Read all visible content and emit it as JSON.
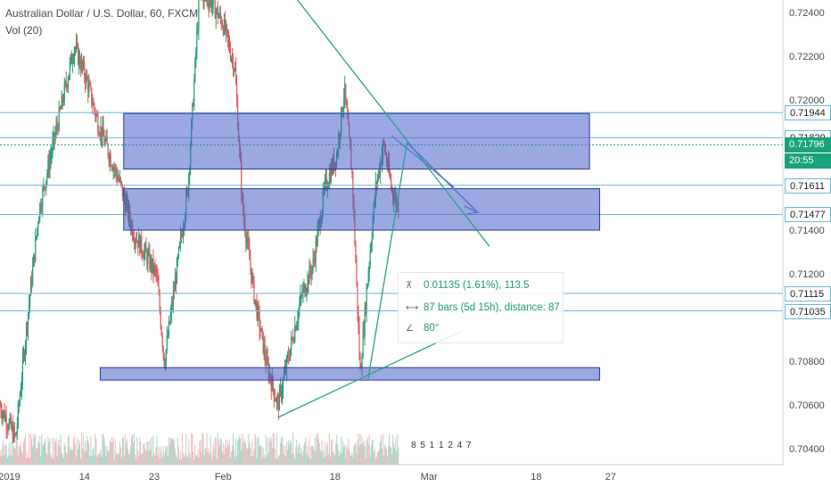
{
  "chart_data": {
    "type": "candlestick",
    "title": "Australian Dollar / U.S. Dollar, 60, FXCM",
    "indicator": "Vol (20)",
    "x_tick_labels": [
      "2019",
      "14",
      "23",
      "Feb",
      "18",
      "Mar",
      "18",
      "27"
    ],
    "y_tick_labels": [
      "0.72400",
      "0.72200",
      "0.72000",
      "0.71400",
      "0.71200",
      "0.70800",
      "0.70600",
      "0.70400"
    ],
    "ylim": [
      0.7033,
      0.7246
    ],
    "horizontal_levels": [
      {
        "label": "0.71944",
        "value": 0.71944
      },
      {
        "label": "0.71829",
        "value": 0.71829
      },
      {
        "label": "0.71611",
        "value": 0.71611
      },
      {
        "label": "0.71477",
        "value": 0.71477
      },
      {
        "label": "0.71115",
        "value": 0.71115
      },
      {
        "label": "0.71035",
        "value": 0.71035
      }
    ],
    "current_price": {
      "label": "0.71796",
      "value": 0.71796,
      "timer": "20:55"
    },
    "rectangles": [
      {
        "from_x": 0.158,
        "to_x": 0.753,
        "top": 0.7194,
        "bottom": 0.71685
      },
      {
        "from_x": 0.158,
        "to_x": 0.766,
        "top": 0.71595,
        "bottom": 0.71405
      },
      {
        "from_x": 0.128,
        "to_x": 0.766,
        "top": 0.70775,
        "bottom": 0.70745
      }
    ],
    "measure": {
      "price_range": "0.01135 (1.61%), 113.5",
      "bars_range": "87 bars (5d 15h), distance: 87",
      "angle": "80°"
    },
    "volume_label": "8 5 1 1 2 4 7",
    "series": [
      {
        "name": "AUDUSD",
        "ohlc_path": [
          [
            0.0,
            0.706
          ],
          [
            0.02,
            0.7045
          ],
          [
            0.035,
            0.71
          ],
          [
            0.05,
            0.715
          ],
          [
            0.065,
            0.7175
          ],
          [
            0.08,
            0.72
          ],
          [
            0.095,
            0.7225
          ],
          [
            0.11,
            0.721
          ],
          [
            0.125,
            0.719
          ],
          [
            0.14,
            0.7175
          ],
          [
            0.155,
            0.716
          ],
          [
            0.17,
            0.714
          ],
          [
            0.185,
            0.713
          ],
          [
            0.2,
            0.712
          ],
          [
            0.21,
            0.708
          ],
          [
            0.225,
            0.712
          ],
          [
            0.24,
            0.716
          ],
          [
            0.255,
            0.725
          ],
          [
            0.27,
            0.7245
          ],
          [
            0.285,
            0.7235
          ],
          [
            0.3,
            0.7215
          ],
          [
            0.31,
            0.715
          ],
          [
            0.325,
            0.711
          ],
          [
            0.34,
            0.708
          ],
          [
            0.355,
            0.706
          ],
          [
            0.37,
            0.7085
          ],
          [
            0.385,
            0.711
          ],
          [
            0.4,
            0.7125
          ],
          [
            0.415,
            0.716
          ],
          [
            0.43,
            0.7175
          ],
          [
            0.44,
            0.7205
          ],
          [
            0.45,
            0.7165
          ],
          [
            0.46,
            0.7075
          ],
          [
            0.47,
            0.712
          ],
          [
            0.48,
            0.716
          ],
          [
            0.49,
            0.718
          ],
          [
            0.5,
            0.716
          ],
          [
            0.51,
            0.715
          ]
        ]
      }
    ]
  }
}
